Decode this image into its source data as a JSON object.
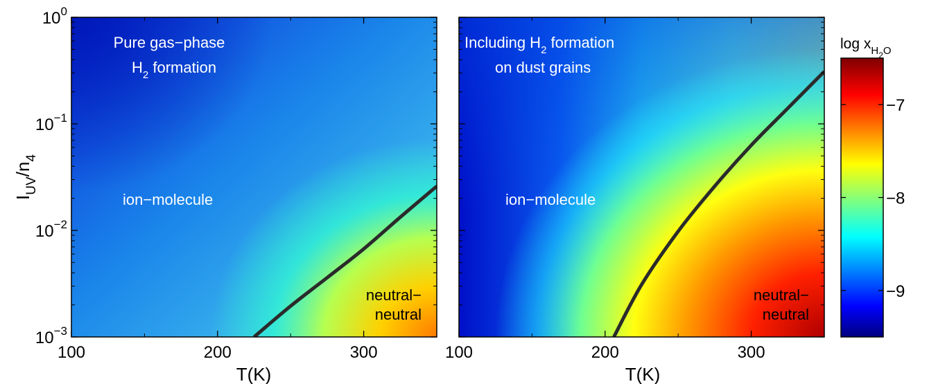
{
  "chart_data": [
    {
      "type": "heatmap",
      "panel": "left",
      "xlabel": "T(K)",
      "ylabel_main": "I",
      "ylabel_sub1": "UV",
      "ylabel_mid": "/n",
      "ylabel_sub2": "4",
      "xlim": [
        100,
        350
      ],
      "ylim": [
        0.001,
        1
      ],
      "yscale": "log",
      "x_ticks": [
        100,
        200,
        300
      ],
      "x_tick_labels": [
        "100",
        "200",
        "300"
      ],
      "y_ticks": [
        0.001,
        0.01,
        0.1,
        1
      ],
      "y_tick_exponents": [
        "−3",
        "−2",
        "−1",
        "0"
      ],
      "y_tick_base": "10",
      "annotations": {
        "top_line1": "Pure gas−phase",
        "top_line2_main": "H",
        "top_line2_sub": "2",
        "top_line2_rest": " formation",
        "middle": "ion−molecule",
        "corner_line1": "neutral−",
        "corner_line2": "neutral"
      },
      "boundary_curve": {
        "x": [
          225,
          250,
          275,
          300,
          325,
          350
        ],
        "y": [
          0.001,
          0.00195,
          0.0036,
          0.0067,
          0.0133,
          0.026
        ]
      }
    },
    {
      "type": "heatmap",
      "panel": "right",
      "xlabel": "T(K)",
      "xlim": [
        100,
        350
      ],
      "ylim": [
        0.001,
        1
      ],
      "yscale": "log",
      "x_ticks": [
        100,
        200,
        300
      ],
      "x_tick_labels": [
        "100",
        "200",
        "300"
      ],
      "annotations": {
        "top_line1_main": "Including H",
        "top_line1_sub": "2",
        "top_line1_rest": " formation",
        "top_line2": "on dust grains",
        "middle": "ion−molecule",
        "corner_line1": "neutral−",
        "corner_line2": "neutral"
      },
      "boundary_curve": {
        "x": [
          206,
          225,
          250,
          275,
          300,
          325,
          350
        ],
        "y": [
          0.001,
          0.0031,
          0.0098,
          0.026,
          0.063,
          0.14,
          0.31
        ]
      }
    }
  ],
  "colorbar": {
    "title_main": "log x",
    "title_sub1": "H",
    "title_sub2": "2",
    "title_sub3": "O",
    "range": [
      -9.5,
      -6.5
    ],
    "ticks": [
      -9,
      -8,
      -7
    ],
    "tick_labels": [
      "−9",
      "−8",
      "−7"
    ],
    "colormap": "jet"
  }
}
